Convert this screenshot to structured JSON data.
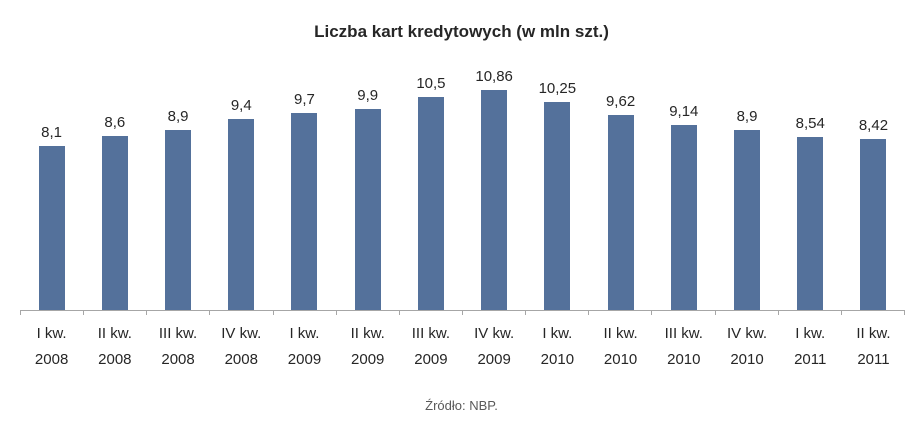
{
  "chart_data": {
    "type": "bar",
    "title": "Liczba kart kredytowych (w mln szt.)",
    "categories": [
      [
        "I kw.",
        "2008"
      ],
      [
        "II kw.",
        "2008"
      ],
      [
        "III kw.",
        "2008"
      ],
      [
        "IV kw.",
        "2008"
      ],
      [
        "I kw.",
        "2009"
      ],
      [
        "II kw.",
        "2009"
      ],
      [
        "III kw.",
        "2009"
      ],
      [
        "IV kw.",
        "2009"
      ],
      [
        "I kw.",
        "2010"
      ],
      [
        "II kw.",
        "2010"
      ],
      [
        "III kw.",
        "2010"
      ],
      [
        "IV kw.",
        "2010"
      ],
      [
        "I kw.",
        "2011"
      ],
      [
        "II kw.",
        "2011"
      ]
    ],
    "values": [
      8.1,
      8.6,
      8.9,
      9.4,
      9.7,
      9.9,
      10.5,
      10.86,
      10.25,
      9.62,
      9.14,
      8.9,
      8.54,
      8.42
    ],
    "value_labels": [
      "8,1",
      "8,6",
      "8,9",
      "9,4",
      "9,7",
      "9,9",
      "10,5",
      "10,86",
      "10,25",
      "9,62",
      "9,14",
      "8,9",
      "8,54",
      "8,42"
    ],
    "xlabel": "",
    "ylabel": "",
    "ylim": [
      0,
      11
    ],
    "grid": false,
    "legend": "none",
    "bar_color": "#54719b",
    "source_note": "Źródło: NBP."
  }
}
